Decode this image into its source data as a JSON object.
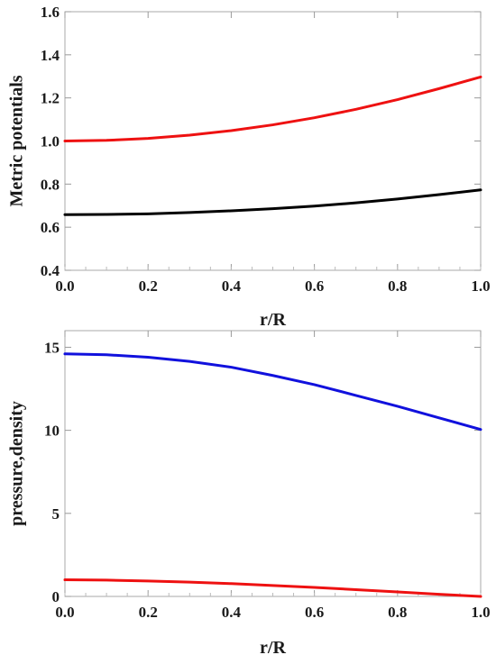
{
  "chart_data": [
    {
      "type": "line",
      "title": "",
      "xlabel": "r/R",
      "ylabel": "Metric potentials",
      "xlim": [
        0,
        1
      ],
      "ylim": [
        0.4,
        1.6
      ],
      "x_ticks": [
        "0.0",
        "0.2",
        "0.4",
        "0.6",
        "0.8",
        "1.0"
      ],
      "y_ticks": [
        "0.4",
        "0.6",
        "0.8",
        "1.0",
        "1.2",
        "1.4",
        "1.6"
      ],
      "grid": false,
      "series": [
        {
          "color": "#ee1111",
          "x": [
            0,
            0.1,
            0.2,
            0.3,
            0.4,
            0.5,
            0.6,
            0.7,
            0.8,
            0.9,
            1.0
          ],
          "y": [
            1.0,
            1.003,
            1.012,
            1.027,
            1.048,
            1.075,
            1.108,
            1.147,
            1.192,
            1.243,
            1.297
          ]
        },
        {
          "color": "#000000",
          "x": [
            0,
            0.1,
            0.2,
            0.3,
            0.4,
            0.5,
            0.6,
            0.7,
            0.8,
            0.9,
            1.0
          ],
          "y": [
            0.658,
            0.659,
            0.662,
            0.668,
            0.676,
            0.686,
            0.698,
            0.713,
            0.731,
            0.751,
            0.773
          ]
        }
      ]
    },
    {
      "type": "line",
      "title": "",
      "xlabel": "r/R",
      "ylabel": "pressure,density",
      "xlim": [
        0,
        1
      ],
      "ylim": [
        0,
        16
      ],
      "x_ticks": [
        "0.0",
        "0.2",
        "0.4",
        "0.6",
        "0.8",
        "1.0"
      ],
      "y_ticks": [
        "0",
        "5",
        "10",
        "15"
      ],
      "grid": false,
      "series": [
        {
          "color": "#1111dd",
          "x": [
            0,
            0.1,
            0.2,
            0.3,
            0.4,
            0.5,
            0.6,
            0.7,
            0.8,
            0.9,
            1.0
          ],
          "y": [
            14.6,
            14.55,
            14.4,
            14.15,
            13.8,
            13.3,
            12.75,
            12.1,
            11.45,
            10.75,
            10.05
          ]
        },
        {
          "color": "#ee1111",
          "x": [
            0,
            0.1,
            0.2,
            0.3,
            0.4,
            0.5,
            0.6,
            0.7,
            0.8,
            0.9,
            1.0
          ],
          "y": [
            1.0,
            0.98,
            0.93,
            0.86,
            0.77,
            0.66,
            0.54,
            0.41,
            0.27,
            0.13,
            0.0
          ]
        }
      ]
    }
  ]
}
